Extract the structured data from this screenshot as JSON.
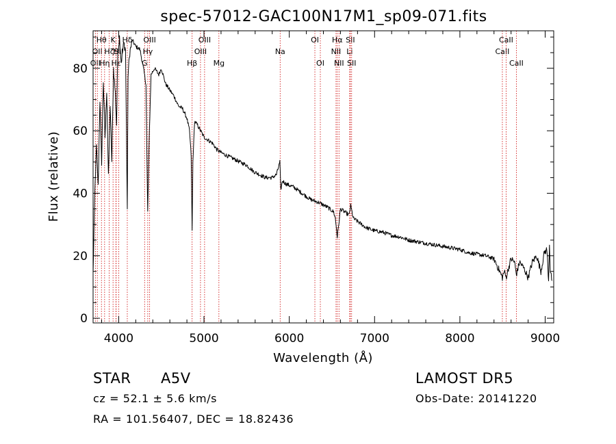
{
  "chart_data": {
    "type": "line",
    "title": "spec-57012-GAC100N17M1_sp09-071.fits",
    "xlabel": "Wavelength (Å)",
    "ylabel": "Flux (relative)",
    "xlim": [
      3700,
      9100
    ],
    "ylim": [
      -1.5,
      92
    ],
    "xticks": [
      4000,
      5000,
      6000,
      7000,
      8000,
      9000
    ],
    "yticks": [
      0,
      20,
      40,
      60,
      80
    ],
    "grid": false,
    "series": [
      {
        "x": [
          3700,
          3720,
          3740,
          3760,
          3780,
          3800,
          3820,
          3840,
          3860,
          3880,
          3900,
          3920,
          3940,
          3960,
          3975,
          3990,
          4010,
          4030,
          4060,
          4080,
          4101,
          4110,
          4130,
          4160,
          4200,
          4250,
          4290,
          4320,
          4340,
          4360,
          4380,
          4420,
          4470,
          4500,
          4550,
          4600,
          4650,
          4700,
          4750,
          4800,
          4830,
          4850,
          4861,
          4870,
          4890,
          4920,
          4960,
          5000,
          5050,
          5100,
          5150,
          5200,
          5270,
          5350,
          5420,
          5500,
          5580,
          5650,
          5720,
          5800,
          5850,
          5890,
          5900,
          5920,
          5960,
          6050,
          6150,
          6250,
          6350,
          6450,
          6520,
          6540,
          6563,
          6580,
          6600,
          6650,
          6700,
          6720,
          6750,
          6800,
          6850,
          6900,
          7000,
          7100,
          7200,
          7300,
          7400,
          7500,
          7600,
          7700,
          7800,
          7900,
          8000,
          8100,
          8200,
          8300,
          8400,
          8450,
          8498,
          8520,
          8542,
          8570,
          8600,
          8640,
          8662,
          8700,
          8750,
          8800,
          8850,
          8900,
          8950,
          8990,
          9020,
          9040,
          9050,
          9060,
          9080
        ],
        "y": [
          14,
          40,
          55,
          42,
          70,
          50,
          76,
          58,
          73,
          45,
          68,
          50,
          80,
          72,
          62,
          85,
          90,
          82,
          88,
          86,
          35,
          78,
          85,
          89,
          87,
          86,
          80,
          75,
          34,
          60,
          78,
          80,
          78,
          80,
          75,
          73,
          71,
          68,
          67,
          64,
          60,
          52,
          28,
          50,
          63,
          62,
          60,
          58,
          57,
          56,
          54,
          53,
          52,
          51,
          50,
          49,
          47,
          46,
          45,
          45,
          46,
          50,
          41,
          44,
          43,
          42,
          40,
          38,
          37,
          35.5,
          34,
          32,
          26,
          30,
          35,
          34,
          33,
          36,
          32,
          31,
          30,
          29,
          28,
          27.5,
          26.5,
          26,
          25,
          24.5,
          24,
          23.5,
          23,
          22.5,
          22,
          21,
          20.5,
          20,
          19,
          16,
          13,
          15,
          13,
          16,
          19,
          18,
          14,
          18,
          16,
          13,
          18,
          20,
          15,
          21,
          22,
          12,
          24,
          15,
          12
        ]
      }
    ],
    "lines": [
      {
        "x": 3727,
        "label": "OII",
        "row": 3
      },
      {
        "x": 3750,
        "label": "OII",
        "row": 2
      },
      {
        "x": 3798,
        "label": "Hθ",
        "row": 1
      },
      {
        "x": 3835,
        "label": "Hη",
        "row": 3
      },
      {
        "x": 3889,
        "label": "Hζ",
        "row": 2
      },
      {
        "x": 3934,
        "label": "K",
        "row": 1
      },
      {
        "x": 3968,
        "label": "H",
        "row": 2
      },
      {
        "x": 3970,
        "label": "Hε",
        "row": 3
      },
      {
        "x": 4000,
        "label": "SII",
        "row": 2
      },
      {
        "x": 4101,
        "label": "Hδ",
        "row": 1
      },
      {
        "x": 4304,
        "label": "G",
        "row": 3
      },
      {
        "x": 4341,
        "label": "Hγ",
        "row": 2
      },
      {
        "x": 4363,
        "label": "OIII",
        "row": 1
      },
      {
        "x": 4861,
        "label": "Hβ",
        "row": 3
      },
      {
        "x": 4959,
        "label": "OIII",
        "row": 2
      },
      {
        "x": 5007,
        "label": "OIII",
        "row": 1
      },
      {
        "x": 5175,
        "label": "Mg",
        "row": 3
      },
      {
        "x": 5893,
        "label": "Na",
        "row": 2
      },
      {
        "x": 6300,
        "label": "OI",
        "row": 1
      },
      {
        "x": 6364,
        "label": "OI",
        "row": 3
      },
      {
        "x": 6548,
        "label": "NII",
        "row": 2
      },
      {
        "x": 6563,
        "label": "Hα",
        "row": 1
      },
      {
        "x": 6583,
        "label": "NII",
        "row": 3
      },
      {
        "x": 6708,
        "label": "Li",
        "row": 2
      },
      {
        "x": 6716,
        "label": "SII",
        "row": 1
      },
      {
        "x": 6731,
        "label": "SII",
        "row": 3
      },
      {
        "x": 8498,
        "label": "CaII",
        "row": 2
      },
      {
        "x": 8542,
        "label": "CaII",
        "row": 1
      },
      {
        "x": 8662,
        "label": "CaII",
        "row": 3
      }
    ]
  },
  "footer": {
    "object_class": "STAR",
    "subclass": "A5V",
    "survey": "LAMOST DR5",
    "redshift": "cz = 52.1 ± 5.6 km/s",
    "obs_date": "Obs-Date: 20141220",
    "coords": "RA = 101.56407, DEC =  18.82436"
  },
  "colors": {
    "line_marker": "#cc0000",
    "spectrum": "#000000",
    "background": "#ffffff"
  }
}
